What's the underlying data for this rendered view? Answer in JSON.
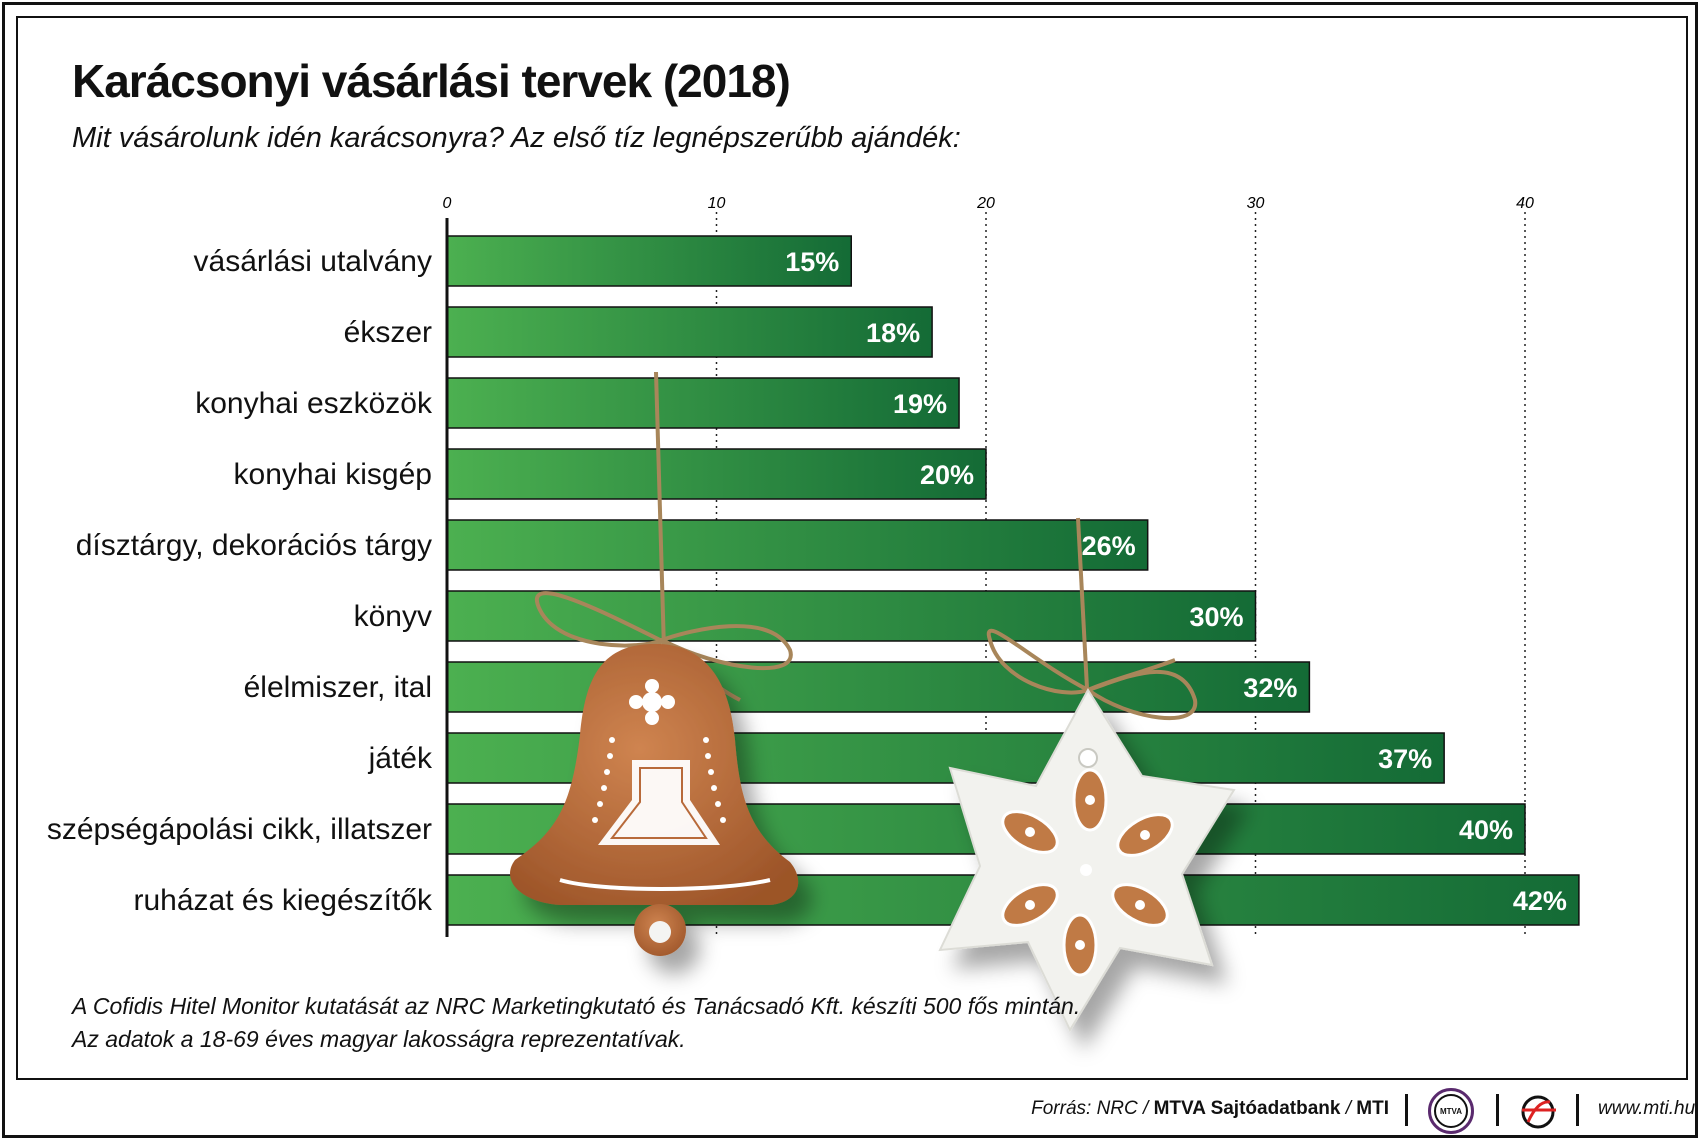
{
  "title": "Karácsonyi vásárlási tervek (2018)",
  "subtitle": "Mit vásárolunk idén karácsonyra? Az első tíz legnépszerűbb ajándék:",
  "chart_data": {
    "type": "bar",
    "orientation": "horizontal",
    "categories": [
      "vásárlási utalvány",
      "ékszer",
      "konyhai eszközök",
      "konyhai kisgép",
      "dísztárgy, dekorációs tárgy",
      "könyv",
      "élelmiszer, ital",
      "játék",
      "szépségápolási cikk, illatszer",
      "ruházat és kiegészítők"
    ],
    "values": [
      15,
      18,
      19,
      20,
      26,
      30,
      32,
      37,
      40,
      42
    ],
    "value_labels": [
      "15%",
      "18%",
      "19%",
      "20%",
      "26%",
      "30%",
      "32%",
      "37%",
      "40%",
      "42%"
    ],
    "x_ticks": [
      "0",
      "10",
      "20",
      "30",
      "40"
    ],
    "xlim": [
      0,
      42
    ],
    "grid": "vertical dotted",
    "legend": "none",
    "bar_color_start": "#4cb050",
    "bar_color_end": "#146b36"
  },
  "footnote": {
    "line1": "A Cofidis Hitel Monitor kutatását az NRC Marketingkutató és Tanácsadó Kft. készíti 500 fős mintán.",
    "line2": "Az adatok a 18-69 éves magyar lakosságra reprezentatívak."
  },
  "footer": {
    "source_prefix": "Forrás: NRC / ",
    "source_bold": "MTVA Sajtóadatbank",
    "source_mid": " / ",
    "source_bold2": "MTI",
    "logo_mtva_text": "MTVA",
    "website": "www.mti.hu"
  },
  "decorations": [
    "gingerbread-bell-icon",
    "gingerbread-star-icon"
  ],
  "colors": {
    "bell": "#b86a3a",
    "star_icing": "#f4f4f2",
    "string": "#a8865a"
  }
}
